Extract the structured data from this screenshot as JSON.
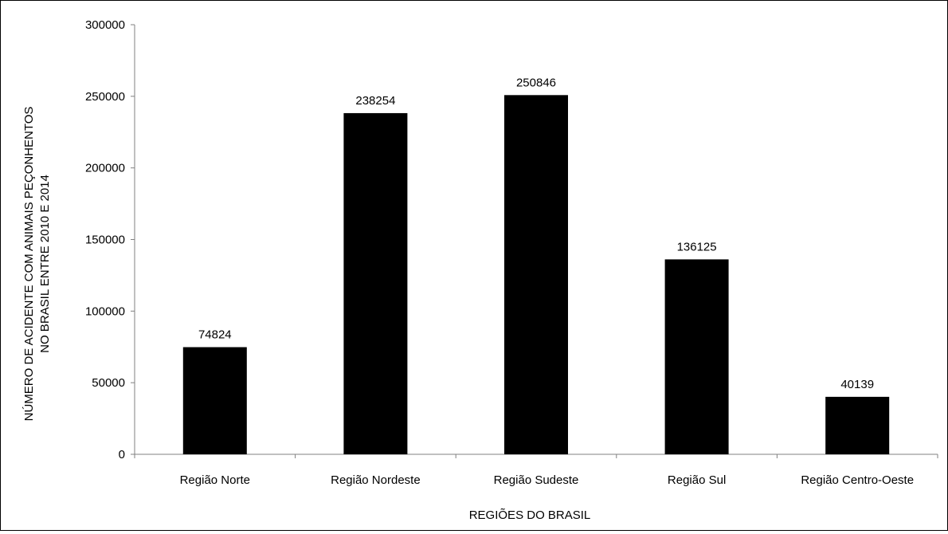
{
  "chart_data": {
    "type": "bar",
    "title": "",
    "xlabel": "REGIÕES DO BRASIL",
    "ylabel_lines": [
      "NÚMERO DE ACIDENTE COM ANIMAIS PEÇONHENTOS",
      "NO BRASIL ENTRE 2010 E 2014"
    ],
    "categories": [
      "Região Norte",
      "Região Nordeste",
      "Região Sudeste",
      "Região Sul",
      "Região Centro-Oeste"
    ],
    "values": [
      74824,
      238254,
      250846,
      136125,
      40139
    ],
    "data_labels": [
      "74824",
      "238254",
      "250846",
      "136125",
      "40139"
    ],
    "ylim": [
      0,
      300000
    ],
    "yticks": [
      0,
      50000,
      100000,
      150000,
      200000,
      250000,
      300000
    ],
    "ytick_labels": [
      "0",
      "50000",
      "100000",
      "150000",
      "200000",
      "250000",
      "300000"
    ],
    "grid": false,
    "legend": "none",
    "bar_color": "#000000"
  }
}
